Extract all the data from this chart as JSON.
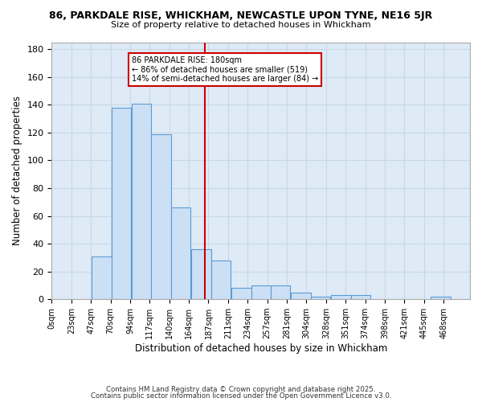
{
  "title": "86, PARKDALE RISE, WHICKHAM, NEWCASTLE UPON TYNE, NE16 5JR",
  "subtitle": "Size of property relative to detached houses in Whickham",
  "xlabel": "Distribution of detached houses by size in Whickham",
  "ylabel": "Number of detached properties",
  "bar_left_edges": [
    0,
    23,
    47,
    70,
    94,
    117,
    140,
    164,
    187,
    211,
    234,
    257,
    281,
    304,
    328,
    351,
    374,
    398,
    421,
    445
  ],
  "bar_heights": [
    0,
    0,
    31,
    138,
    141,
    119,
    66,
    36,
    28,
    8,
    10,
    10,
    5,
    2,
    3,
    3,
    0,
    0,
    0,
    2
  ],
  "bin_width": 23,
  "marker_value": 180,
  "annotation_title": "86 PARKDALE RISE: 180sqm",
  "annotation_line1": "← 86% of detached houses are smaller (519)",
  "annotation_line2": "14% of semi-detached houses are larger (84) →",
  "bar_face_color": "#cce0f5",
  "bar_edge_color": "#5b9bd5",
  "marker_color": "#cc0000",
  "grid_color": "#c8d8e8",
  "background_color": "#deeaf6",
  "tick_labels": [
    "0sqm",
    "23sqm",
    "47sqm",
    "70sqm",
    "94sqm",
    "117sqm",
    "140sqm",
    "164sqm",
    "187sqm",
    "211sqm",
    "234sqm",
    "257sqm",
    "281sqm",
    "304sqm",
    "328sqm",
    "351sqm",
    "374sqm",
    "398sqm",
    "421sqm",
    "445sqm",
    "468sqm"
  ],
  "ylim": [
    0,
    185
  ],
  "yticks": [
    0,
    20,
    40,
    60,
    80,
    100,
    120,
    140,
    160,
    180
  ],
  "footer_line1": "Contains HM Land Registry data © Crown copyright and database right 2025.",
  "footer_line2": "Contains public sector information licensed under the Open Government Licence v3.0."
}
